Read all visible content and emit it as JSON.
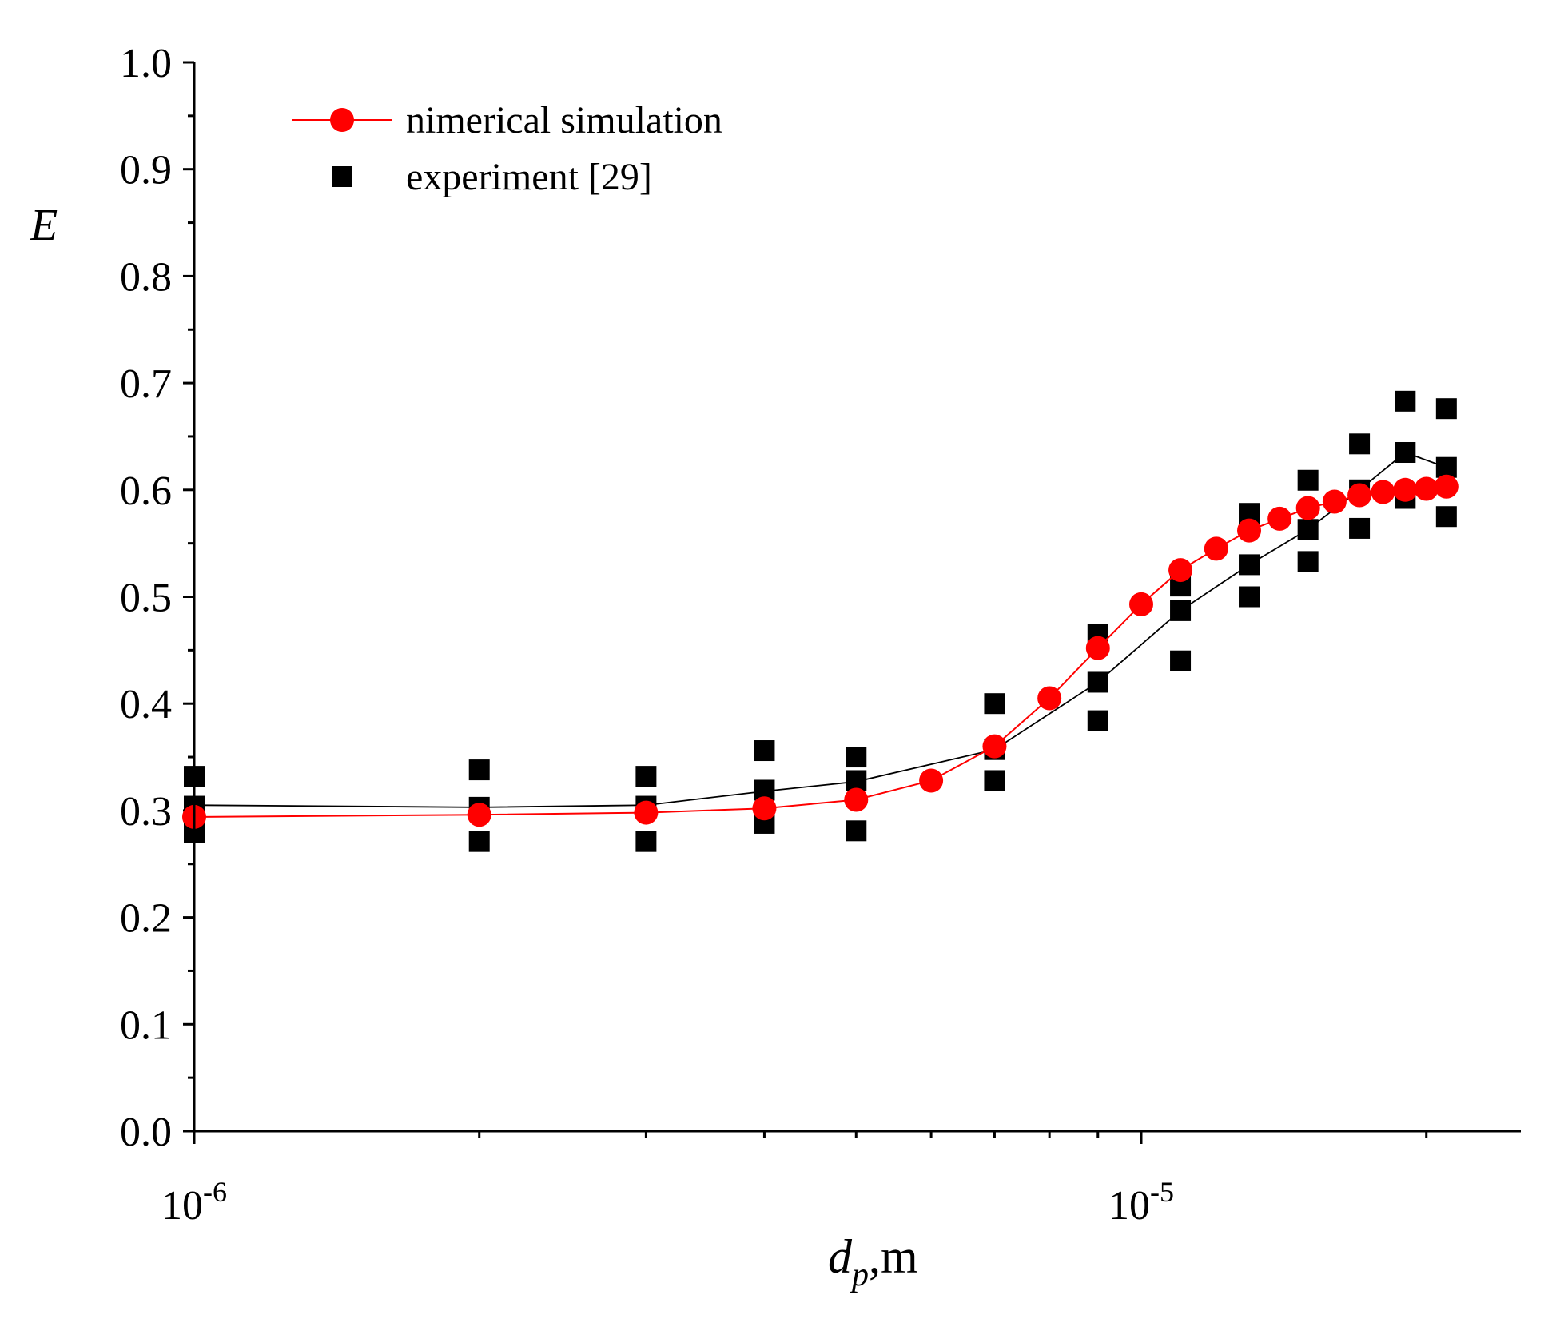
{
  "chart_data": {
    "type": "scatter",
    "title": "",
    "xlabel": "d_p, m",
    "xlabel_parts": {
      "main": "d",
      "sub": "p",
      "unit": ",m"
    },
    "ylabel": "E",
    "x_scale": "log",
    "xlim": [
      1e-06,
      2.4e-05
    ],
    "ylim": [
      0.0,
      1.0
    ],
    "grid": false,
    "legend_position": "top-left",
    "x_tick_labels": [
      {
        "value": 1e-06,
        "base": "10",
        "exp": "-6"
      },
      {
        "value": 1e-05,
        "base": "10",
        "exp": "-5"
      }
    ],
    "x_minor_ticks": [
      2e-06,
      3e-06,
      4e-06,
      5e-06,
      6e-06,
      7e-06,
      8e-06,
      9e-06,
      2e-05
    ],
    "y_ticks": [
      "0.0",
      "0.1",
      "0.2",
      "0.3",
      "0.4",
      "0.5",
      "0.6",
      "0.7",
      "0.8",
      "0.9",
      "1.0"
    ],
    "series": [
      {
        "name": "nimerical simulation",
        "marker": "circle",
        "color": "#ff0000",
        "line": true,
        "x": [
          1e-06,
          2e-06,
          3e-06,
          4e-06,
          5e-06,
          6e-06,
          7e-06,
          8e-06,
          9e-06,
          1e-05,
          1.1e-05,
          1.2e-05,
          1.3e-05,
          1.4e-05,
          1.5e-05,
          1.6e-05,
          1.7e-05,
          1.8e-05,
          1.9e-05,
          2e-05,
          2.1e-05
        ],
        "y": [
          0.294,
          0.296,
          0.298,
          0.302,
          0.31,
          0.328,
          0.36,
          0.405,
          0.452,
          0.493,
          0.525,
          0.545,
          0.562,
          0.573,
          0.583,
          0.589,
          0.595,
          0.598,
          0.6,
          0.601,
          0.603
        ]
      },
      {
        "name": "experiment [29]",
        "marker": "square",
        "color": "#000000",
        "line": false,
        "x": [
          1e-06,
          1e-06,
          1e-06,
          2e-06,
          2e-06,
          2e-06,
          3e-06,
          3e-06,
          3e-06,
          4e-06,
          4e-06,
          4e-06,
          5e-06,
          5e-06,
          5e-06,
          7e-06,
          7e-06,
          7e-06,
          9e-06,
          9e-06,
          9e-06,
          1.1e-05,
          1.1e-05,
          1.1e-05,
          1.3e-05,
          1.3e-05,
          1.3e-05,
          1.5e-05,
          1.5e-05,
          1.5e-05,
          1.7e-05,
          1.7e-05,
          1.7e-05,
          1.9e-05,
          1.9e-05,
          1.9e-05,
          2.1e-05,
          2.1e-05,
          2.1e-05
        ],
        "y": [
          0.332,
          0.304,
          0.279,
          0.338,
          0.303,
          0.271,
          0.332,
          0.304,
          0.271,
          0.356,
          0.319,
          0.288,
          0.35,
          0.328,
          0.281,
          0.4,
          0.357,
          0.328,
          0.465,
          0.42,
          0.384,
          0.51,
          0.487,
          0.44,
          0.578,
          0.53,
          0.5,
          0.609,
          0.563,
          0.533,
          0.643,
          0.6,
          0.564,
          0.683,
          0.635,
          0.592,
          0.676,
          0.621,
          0.575
        ]
      },
      {
        "name": "",
        "marker": "none",
        "color": "#000000",
        "line": true,
        "x": [
          1e-06,
          2e-06,
          3e-06,
          4e-06,
          5e-06,
          7e-06,
          9e-06,
          1.1e-05,
          1.3e-05,
          1.5e-05,
          1.7e-05,
          1.9e-05,
          2.1e-05
        ],
        "y": [
          0.305,
          0.303,
          0.305,
          0.318,
          0.327,
          0.357,
          0.42,
          0.487,
          0.53,
          0.563,
          0.6,
          0.635,
          0.621
        ]
      }
    ]
  }
}
